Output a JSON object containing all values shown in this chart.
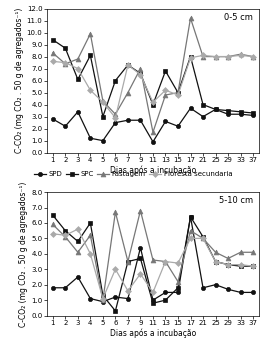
{
  "x_vals": [
    1,
    2,
    3,
    4,
    5,
    6,
    7,
    9,
    11,
    13,
    15,
    17,
    21,
    25,
    29,
    33,
    37
  ],
  "x_positions": [
    0,
    1,
    2,
    3,
    4,
    5,
    6,
    7,
    8,
    9,
    10,
    11,
    12,
    13,
    14,
    15,
    16
  ],
  "top": {
    "title": "0-5 cm",
    "ylim": [
      0.0,
      12.0
    ],
    "yticks": [
      0.0,
      1.0,
      2.0,
      3.0,
      4.0,
      5.0,
      6.0,
      7.0,
      8.0,
      9.0,
      10.0,
      11.0,
      12.0
    ],
    "SPD": [
      2.8,
      2.2,
      3.4,
      1.2,
      1.0,
      2.5,
      2.7,
      2.7,
      0.9,
      2.6,
      2.2,
      3.7,
      3.0,
      3.6,
      3.2,
      3.2,
      3.1
    ],
    "SPC": [
      9.4,
      8.7,
      6.1,
      8.1,
      3.0,
      6.0,
      7.3,
      6.6,
      4.0,
      6.8,
      5.0,
      8.0,
      4.0,
      3.6,
      3.5,
      3.4,
      3.3
    ],
    "Pastagem": [
      8.3,
      7.4,
      7.8,
      9.9,
      4.3,
      3.2,
      5.0,
      7.0,
      1.7,
      4.8,
      5.0,
      11.2,
      8.0,
      8.0,
      8.0,
      8.2,
      8.0
    ],
    "Floresta secundaria": [
      7.6,
      7.5,
      7.0,
      5.2,
      4.2,
      2.9,
      7.3,
      6.5,
      4.2,
      5.2,
      4.8,
      7.9,
      8.1,
      8.0,
      8.0,
      8.1,
      8.0
    ]
  },
  "bottom": {
    "title": "5-10 cm",
    "ylim": [
      0.0,
      8.0
    ],
    "yticks": [
      0.0,
      1.0,
      2.0,
      3.0,
      4.0,
      5.0,
      6.0,
      7.0,
      8.0
    ],
    "SPD": [
      1.8,
      1.8,
      2.5,
      1.1,
      0.9,
      1.2,
      1.1,
      4.4,
      1.0,
      1.5,
      1.5,
      6.4,
      1.8,
      2.0,
      1.7,
      1.5,
      1.5
    ],
    "SPC": [
      6.5,
      5.5,
      4.8,
      6.0,
      1.3,
      0.3,
      3.5,
      3.7,
      0.8,
      1.0,
      1.8,
      6.4,
      5.1,
      3.5,
      3.3,
      3.2,
      3.2
    ],
    "Pastagem": [
      5.9,
      5.1,
      4.1,
      5.2,
      1.0,
      6.7,
      3.5,
      6.8,
      3.6,
      3.5,
      2.2,
      5.5,
      5.0,
      4.1,
      3.7,
      4.1,
      4.1
    ],
    "Floresta secundaria": [
      5.3,
      5.2,
      5.6,
      4.0,
      1.1,
      3.0,
      1.6,
      2.7,
      1.5,
      3.5,
      3.4,
      5.0,
      5.0,
      3.5,
      3.3,
      3.3,
      3.2
    ]
  },
  "xlabel": "Dias após a incubação",
  "ylabel": "C-CO₂ (mg CO₂ . 50 g de agregados⁻¹)",
  "series_order": [
    "SPD",
    "SPC",
    "Pastagem",
    "Floresta secundaria"
  ],
  "series_styles": {
    "SPD": {
      "color": "#111111",
      "marker": "o",
      "markersize": 3.0,
      "markerfacecolor": "#111111"
    },
    "SPC": {
      "color": "#111111",
      "marker": "s",
      "markersize": 3.0,
      "markerfacecolor": "#111111"
    },
    "Pastagem": {
      "color": "#777777",
      "marker": "^",
      "markersize": 3.5,
      "markerfacecolor": "#777777"
    },
    "Floresta secundaria": {
      "color": "#aaaaaa",
      "marker": "D",
      "markersize": 3.0,
      "markerfacecolor": "#aaaaaa"
    }
  },
  "linewidth": 0.9,
  "tick_fontsize": 5.0,
  "label_fontsize": 5.5,
  "title_fontsize": 6.0,
  "legend_fontsize": 5.0
}
